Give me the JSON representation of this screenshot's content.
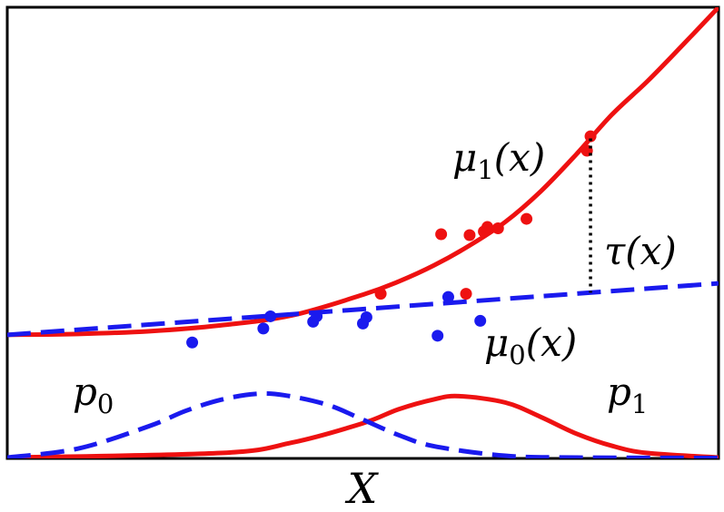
{
  "chart_data": {
    "type": "scatter",
    "xlabel": "X",
    "ylabel": "",
    "xlim": [
      0,
      10
    ],
    "ylim": [
      0,
      10
    ],
    "grid": false,
    "colors": {
      "treated": "#ee1111",
      "control": "#1a1aee",
      "annotation": "#000000"
    },
    "series": [
      {
        "name": "μ1(x)",
        "kind": "line",
        "style": "solid",
        "color": "#ee1111",
        "x": [
          0,
          1,
          2,
          3,
          4,
          5,
          5.5,
          6,
          6.5,
          7,
          7.5,
          8,
          8.5,
          9,
          9.5,
          10
        ],
        "y": [
          2.74,
          2.76,
          2.82,
          2.95,
          3.17,
          3.63,
          3.92,
          4.28,
          4.72,
          5.24,
          5.92,
          6.74,
          7.62,
          8.36,
          9.17,
          10.0
        ]
      },
      {
        "name": "μ0(x)",
        "kind": "line",
        "style": "dashed",
        "color": "#1a1aee",
        "x": [
          0,
          10
        ],
        "y": [
          2.74,
          3.88
        ]
      },
      {
        "name": "",
        "kind": "points",
        "color": "#ee1111",
        "points": [
          [
            5.25,
            3.65
          ],
          [
            6.1,
            4.97
          ],
          [
            6.45,
            3.65
          ],
          [
            6.5,
            4.95
          ],
          [
            6.7,
            5.03
          ],
          [
            6.75,
            5.13
          ],
          [
            6.9,
            5.1
          ],
          [
            7.3,
            5.31
          ],
          [
            8.15,
            6.82
          ],
          [
            8.2,
            7.14
          ]
        ]
      },
      {
        "name": "",
        "kind": "points",
        "color": "#1a1aee",
        "points": [
          [
            2.6,
            2.57
          ],
          [
            3.6,
            2.88
          ],
          [
            3.7,
            3.15
          ],
          [
            4.3,
            3.03
          ],
          [
            4.35,
            3.15
          ],
          [
            5.0,
            2.99
          ],
          [
            5.05,
            3.13
          ],
          [
            6.05,
            2.72
          ],
          [
            6.2,
            3.58
          ],
          [
            6.65,
            3.05
          ]
        ]
      },
      {
        "name": "p1",
        "kind": "density",
        "style": "solid",
        "color": "#ee1111",
        "x": [
          0,
          3,
          4,
          5,
          5.5,
          6,
          6.35,
          7,
          7.5,
          8,
          8.5,
          9,
          10
        ],
        "y": [
          0.02,
          0.12,
          0.35,
          0.78,
          1.09,
          1.31,
          1.38,
          1.24,
          0.92,
          0.55,
          0.28,
          0.12,
          0.02
        ]
      },
      {
        "name": "p0",
        "kind": "density",
        "style": "dashed",
        "color": "#1a1aee",
        "x": [
          0,
          1,
          2,
          2.5,
          3,
          3.5,
          3.9,
          4.5,
          5,
          5.5,
          6,
          7,
          8,
          10
        ],
        "y": [
          0.02,
          0.22,
          0.72,
          1.05,
          1.3,
          1.43,
          1.4,
          1.19,
          0.86,
          0.52,
          0.27,
          0.06,
          0.02,
          0.01
        ]
      }
    ],
    "annotations": [
      {
        "text": "μ1(x)",
        "main": "μ",
        "sub": "1",
        "arg": "(x)"
      },
      {
        "text": "μ0(x)",
        "main": "μ",
        "sub": "0",
        "arg": "(x)"
      },
      {
        "text": "τ(x)",
        "main": "τ",
        "sub": "",
        "arg": "(x)",
        "at_x": 8.2
      },
      {
        "text": "p0",
        "main": "p",
        "sub": "0",
        "arg": ""
      },
      {
        "text": "p1",
        "main": "p",
        "sub": "1",
        "arg": ""
      }
    ]
  }
}
